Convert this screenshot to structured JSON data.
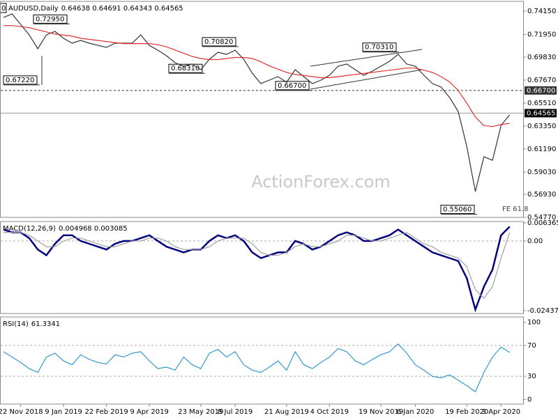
{
  "header": {
    "symbol": "AUDUSD,Daily",
    "ohlc_text": "0.64638 0.64691 0.64343 0.64565",
    "corner_label": "0",
    "watermark": "ActionForex.com",
    "note": "FE 61.8"
  },
  "chart_data": [
    {
      "type": "line",
      "title": "AUDUSD,Daily",
      "categories": [
        null,
        null,
        "22 Nov 2018",
        null,
        null,
        null,
        null,
        "9 Jan 2019",
        null,
        null,
        null,
        null,
        "22 Feb 2019",
        null,
        null,
        null,
        null,
        "9 Apr 2019",
        null,
        null,
        null,
        null,
        null,
        "23 May 2019",
        null,
        null,
        null,
        "8 Jul 2019",
        null,
        null,
        null,
        null,
        null,
        "21 Aug 2019",
        null,
        null,
        null,
        null,
        "4 Oct 2019",
        null,
        null,
        null,
        null,
        null,
        "19 Nov 2019",
        null,
        null,
        null,
        "6 Jan 2020",
        null,
        null,
        null,
        null,
        null,
        "19 Feb 2020",
        null,
        null,
        null,
        "3 Apr 2020",
        null
      ],
      "series": [
        {
          "name": "Price",
          "color": "#333333",
          "values": [
            0.7356,
            0.7389,
            0.7291,
            0.7192,
            0.7062,
            0.7192,
            0.7225,
            0.716,
            0.7114,
            0.714,
            0.7114,
            0.7094,
            0.7075,
            0.7114,
            0.7114,
            0.7114,
            0.7192,
            0.7094,
            0.7048,
            0.6996,
            0.6931,
            0.6898,
            0.6918,
            0.6865,
            0.6963,
            0.7029,
            0.7009,
            0.7048,
            0.6963,
            0.6832,
            0.6734,
            0.6767,
            0.68,
            0.6747,
            0.6865,
            0.68,
            0.6734,
            0.6767,
            0.6813,
            0.6898,
            0.6918,
            0.6865,
            0.6813,
            0.6852,
            0.6898,
            0.6944,
            0.7009,
            0.6918,
            0.6898,
            0.6813,
            0.6734,
            0.6702,
            0.6603,
            0.6473,
            0.6145,
            0.572,
            0.6047,
            0.6014,
            0.6342,
            0.644
          ]
        },
        {
          "name": "MA",
          "color": "#e03030",
          "values": [
            0.728,
            0.728,
            0.727,
            0.726,
            0.724,
            0.722,
            0.72,
            0.719,
            0.718,
            0.716,
            0.715,
            0.714,
            0.713,
            0.712,
            0.711,
            0.711,
            0.711,
            0.711,
            0.71,
            0.708,
            0.705,
            0.702,
            0.699,
            0.697,
            0.696,
            0.696,
            0.697,
            0.698,
            0.698,
            0.697,
            0.694,
            0.69,
            0.687,
            0.684,
            0.682,
            0.681,
            0.68,
            0.679,
            0.679,
            0.68,
            0.681,
            0.682,
            0.683,
            0.684,
            0.685,
            0.686,
            0.687,
            0.688,
            0.688,
            0.686,
            0.684,
            0.68,
            0.675,
            0.667,
            0.655,
            0.642,
            0.634,
            0.633,
            0.635,
            0.636
          ]
        }
      ],
      "ylim": [
        0.5477,
        0.7507
      ],
      "yticks": [
        {
          "value": 0.7415,
          "label": "0.74150"
        },
        {
          "value": 0.7195,
          "label": "0.71950"
        },
        {
          "value": 0.6983,
          "label": "0.69830"
        },
        {
          "value": 0.6767,
          "label": "0.67670"
        },
        {
          "value": 0.6551,
          "label": "0.65510"
        },
        {
          "value": 0.6335,
          "label": "0.63350"
        },
        {
          "value": 0.6119,
          "label": "0.61190"
        },
        {
          "value": 0.5903,
          "label": "0.59030"
        },
        {
          "value": 0.5693,
          "label": "0.56930"
        },
        {
          "value": 0.5477,
          "label": "0.54770"
        }
      ],
      "hlines": [
        {
          "value": 0.667,
          "label": "0.66700",
          "dashed": true
        },
        {
          "value": 0.64565,
          "label": "0.64565",
          "dashed": false
        }
      ],
      "annotations": [
        {
          "value": 0.7295,
          "label": "0.72950"
        },
        {
          "value": 0.7082,
          "label": "0.70820"
        },
        {
          "value": 0.6831,
          "label": "0.68310"
        },
        {
          "value": 0.6722,
          "label": "0.67220"
        },
        {
          "value": 0.667,
          "label": "0.66700"
        },
        {
          "value": 0.7031,
          "label": "0.70310"
        },
        {
          "value": 0.5506,
          "label": "0.55060"
        }
      ]
    },
    {
      "type": "line",
      "title": "MACD(12,26,9)",
      "value_text": "0.004968 0.003085",
      "series": [
        {
          "name": "MACD",
          "color": "#000080",
          "values": [
            0.004,
            0.003,
            0.003,
            0.001,
            -0.003,
            -0.005,
            -0.001,
            0.002,
            0.002,
            0.0,
            -0.001,
            -0.002,
            -0.003,
            -0.001,
            0.0,
            0.0,
            0.001,
            0.002,
            0.0,
            -0.002,
            -0.003,
            -0.004,
            -0.003,
            -0.003,
            0.0,
            0.002,
            0.001,
            0.002,
            0.0,
            -0.004,
            -0.006,
            -0.005,
            -0.004,
            -0.004,
            0.0,
            -0.001,
            -0.003,
            -0.002,
            0.0,
            0.002,
            0.003,
            0.002,
            0.0,
            0.0,
            0.001,
            0.002,
            0.004,
            0.002,
            0.0,
            -0.002,
            -0.004,
            -0.005,
            -0.006,
            -0.007,
            -0.013,
            -0.024,
            -0.016,
            -0.01,
            0.002,
            0.005
          ]
        },
        {
          "name": "Signal",
          "color": "#a0a0a0",
          "values": [
            0.003,
            0.003,
            0.003,
            0.002,
            0.0,
            -0.002,
            -0.002,
            0.0,
            0.001,
            0.001,
            0.0,
            -0.001,
            -0.002,
            -0.002,
            -0.001,
            0.0,
            0.0,
            0.001,
            0.001,
            0.0,
            -0.002,
            -0.003,
            -0.003,
            -0.003,
            -0.002,
            0.0,
            0.001,
            0.001,
            0.001,
            -0.001,
            -0.004,
            -0.005,
            -0.005,
            -0.004,
            -0.002,
            -0.001,
            -0.002,
            -0.002,
            -0.001,
            0.0,
            0.002,
            0.002,
            0.001,
            0.0,
            0.0,
            0.001,
            0.002,
            0.003,
            0.001,
            -0.001,
            -0.002,
            -0.004,
            -0.005,
            -0.006,
            -0.009,
            -0.017,
            -0.02,
            -0.016,
            -0.006,
            0.003
          ]
        }
      ],
      "ylim": [
        -0.0254,
        0.0068
      ],
      "yticks": [
        0.006365,
        {
          "value": 0,
          "label": "0.00"
        },
        -0.024376
      ],
      "levels": [
        0
      ]
    },
    {
      "type": "line",
      "title": "RSI(14)",
      "value_text": "61.3341",
      "series": [
        {
          "name": "RSI",
          "color": "#3399cc",
          "values": [
            62,
            55,
            48,
            40,
            35,
            55,
            60,
            50,
            45,
            58,
            52,
            48,
            46,
            58,
            55,
            60,
            62,
            50,
            40,
            42,
            38,
            55,
            45,
            40,
            60,
            65,
            55,
            62,
            45,
            38,
            35,
            42,
            50,
            38,
            62,
            45,
            40,
            48,
            55,
            66,
            62,
            50,
            45,
            52,
            58,
            62,
            72,
            60,
            45,
            38,
            30,
            28,
            32,
            25,
            18,
            10,
            35,
            55,
            68,
            61
          ]
        }
      ],
      "ylim": [
        -6,
        107
      ],
      "yticks": [
        100,
        70,
        30,
        0
      ],
      "levels": [
        70,
        30
      ]
    }
  ]
}
